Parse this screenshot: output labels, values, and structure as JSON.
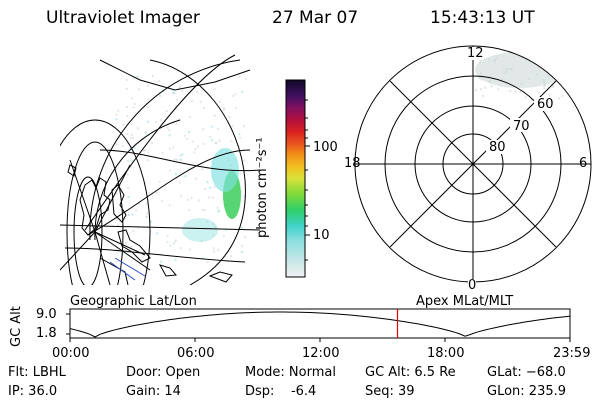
{
  "header": {
    "instrument": "Ultraviolet Imager",
    "date": "27 Mar 07",
    "time": "15:43:13 UT"
  },
  "colorbar": {
    "label": "photon cm⁻²s⁻¹",
    "ticks": [
      "100",
      "10"
    ]
  },
  "polar": {
    "mlt_labels": [
      "12",
      "18",
      "6",
      "0"
    ],
    "lat_labels": [
      "60",
      "70",
      "80"
    ]
  },
  "panels": {
    "left_caption": "Geographic Lat/Lon",
    "right_caption": "Apex MLat/MLT"
  },
  "orbit": {
    "ylabel": "GC Alt",
    "y_ticks": [
      "9.0",
      "1.8"
    ],
    "x_ticks": [
      "00:00",
      "06:00",
      "12:00",
      "18:00",
      "23:59"
    ],
    "current_time_hours": 15.72
  },
  "info": {
    "filter": "Flt: LBHL",
    "ip": "IP: 36.0",
    "door": "Door: Open",
    "gain": "Gain: 14",
    "mode": "Mode: Normal",
    "dsp": "Dsp:    -6.4",
    "gc_alt": "GC Alt: 6.5 Re",
    "seq": "Seq: 39",
    "glat": "GLat: −68.0",
    "glon": "GLon: 235.9"
  },
  "colors": {
    "orbit_marker": "#e00000",
    "aurora_green": "#3ccf5a",
    "aurora_cyan": "#7fe0e0",
    "noise": "#c9d6d3"
  }
}
